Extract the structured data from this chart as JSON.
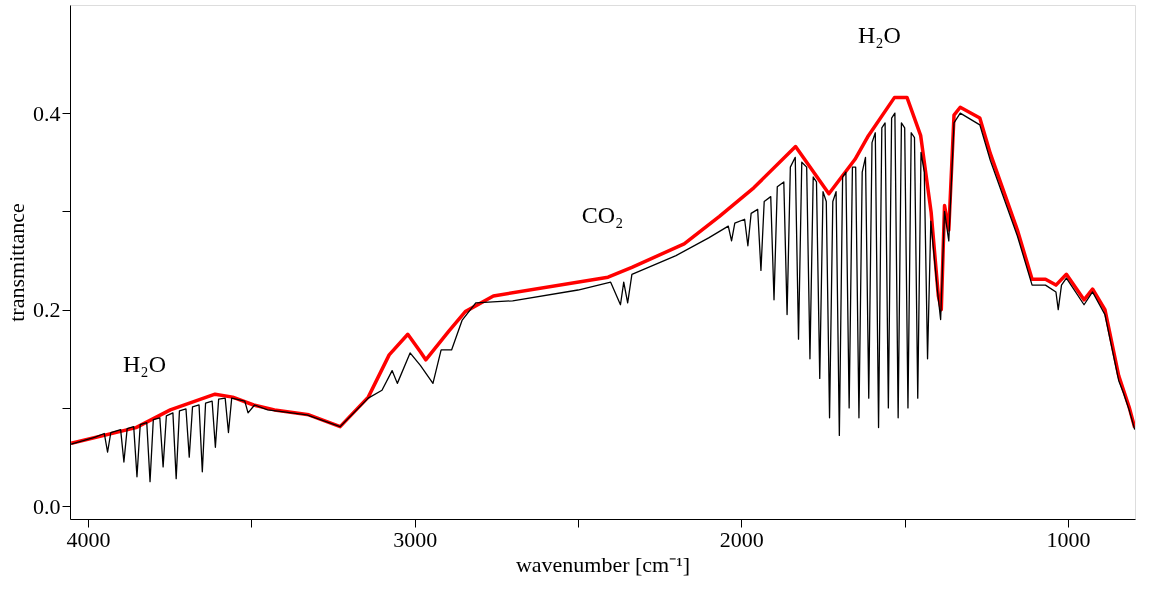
{
  "chart_data": {
    "type": "line",
    "xlabel": "wavenumber [cm⁻¹]",
    "ylabel": "transmittance",
    "xlim": [
      4055,
      795
    ],
    "xticks": [
      4000,
      {
        "value": 3500,
        "label": null
      },
      3000,
      {
        "value": 2500,
        "label": null
      },
      2000,
      {
        "value": 1500,
        "label": null
      },
      1000
    ],
    "ylim": [
      -0.013,
      0.51
    ],
    "yticks": [
      {
        "value": 0,
        "label": "0.0"
      },
      {
        "value": 0.1,
        "label": null
      },
      0.2,
      {
        "value": 0.3,
        "label": null
      },
      0.4
    ],
    "grid": false,
    "line_style": "solid",
    "annotations": [
      "H₂O",
      "CO₂",
      "H₂O"
    ],
    "series": [
      {
        "color": "#ff0000",
        "x": [
          4051,
          3853,
          3748,
          3611,
          3557,
          3493,
          3429,
          3324,
          3228,
          3142,
          3078,
          3021,
          2982,
          2966,
          2896,
          2845,
          2759,
          2408,
          2335,
          2175,
          2067,
          1962,
          1834,
          1732,
          1652,
          1611,
          1531,
          1493,
          1451,
          1419,
          1397,
          1388,
          1378,
          1365,
          1349,
          1330,
          1270,
          1238,
          1155,
          1110,
          1069,
          1037,
          1005,
          951,
          925,
          887,
          845,
          813,
          796
        ],
        "values": [
          0.064,
          0.08,
          0.098,
          0.114,
          0.111,
          0.103,
          0.098,
          0.093,
          0.081,
          0.111,
          0.154,
          0.175,
          0.157,
          0.149,
          0.178,
          0.198,
          0.214,
          0.233,
          0.243,
          0.267,
          0.295,
          0.324,
          0.366,
          0.318,
          0.353,
          0.377,
          0.416,
          0.416,
          0.377,
          0.299,
          0.214,
          0.2,
          0.306,
          0.281,
          0.398,
          0.406,
          0.395,
          0.359,
          0.281,
          0.231,
          0.231,
          0.225,
          0.236,
          0.21,
          0.221,
          0.2,
          0.133,
          0.101,
          0.08
        ]
      },
      {
        "color": "#000000",
        "x": [
          4054,
          3980,
          3950,
          3940,
          3930,
          3900,
          3890,
          3880,
          3860,
          3850,
          3840,
          3820,
          3810,
          3800,
          3780,
          3770,
          3760,
          3740,
          3730,
          3720,
          3700,
          3690,
          3680,
          3660,
          3650,
          3640,
          3620,
          3610,
          3600,
          3580,
          3570,
          3560,
          3520,
          3510,
          3490,
          3450,
          3400,
          3330,
          3228,
          3142,
          3100,
          3069,
          3053,
          3014,
          2982,
          2944,
          2919,
          2887,
          2855,
          2813,
          2700,
          2500,
          2400,
          2370,
          2360,
          2348,
          2335,
          2200,
          2100,
          2040,
          2030,
          2020,
          1990,
          1980,
          1970,
          1950,
          1940,
          1930,
          1910,
          1900,
          1890,
          1870,
          1860,
          1850,
          1835,
          1825,
          1815,
          1800,
          1790,
          1780,
          1770,
          1760,
          1750,
          1740,
          1730,
          1720,
          1710,
          1700,
          1690,
          1680,
          1670,
          1660,
          1650,
          1640,
          1630,
          1620,
          1610,
          1600,
          1590,
          1580,
          1570,
          1560,
          1550,
          1540,
          1530,
          1520,
          1510,
          1500,
          1490,
          1480,
          1470,
          1460,
          1450,
          1440,
          1430,
          1420,
          1400,
          1390,
          1378,
          1365,
          1349,
          1330,
          1270,
          1238,
          1155,
          1110,
          1069,
          1037,
          1030,
          1020,
          1005,
          951,
          925,
          887,
          845,
          830,
          813,
          796
        ],
        "values": [
          0.063,
          0.07,
          0.074,
          0.055,
          0.075,
          0.078,
          0.045,
          0.079,
          0.081,
          0.03,
          0.083,
          0.085,
          0.025,
          0.088,
          0.09,
          0.04,
          0.092,
          0.095,
          0.028,
          0.097,
          0.099,
          0.05,
          0.101,
          0.103,
          0.035,
          0.105,
          0.107,
          0.06,
          0.109,
          0.11,
          0.075,
          0.11,
          0.107,
          0.095,
          0.103,
          0.098,
          0.096,
          0.093,
          0.081,
          0.11,
          0.118,
          0.138,
          0.125,
          0.156,
          0.143,
          0.125,
          0.159,
          0.159,
          0.189,
          0.207,
          0.209,
          0.22,
          0.228,
          0.205,
          0.228,
          0.207,
          0.236,
          0.255,
          0.273,
          0.285,
          0.27,
          0.288,
          0.292,
          0.265,
          0.298,
          0.302,
          0.24,
          0.31,
          0.315,
          0.21,
          0.325,
          0.33,
          0.195,
          0.345,
          0.355,
          0.17,
          0.35,
          0.345,
          0.15,
          0.335,
          0.33,
          0.13,
          0.32,
          0.31,
          0.09,
          0.31,
          0.32,
          0.072,
          0.335,
          0.34,
          0.1,
          0.345,
          0.345,
          0.09,
          0.34,
          0.355,
          0.11,
          0.37,
          0.38,
          0.08,
          0.385,
          0.39,
          0.1,
          0.395,
          0.4,
          0.09,
          0.39,
          0.385,
          0.1,
          0.38,
          0.375,
          0.11,
          0.36,
          0.34,
          0.15,
          0.29,
          0.22,
          0.19,
          0.3,
          0.27,
          0.39,
          0.4,
          0.388,
          0.352,
          0.275,
          0.225,
          0.225,
          0.218,
          0.2,
          0.225,
          0.232,
          0.205,
          0.218,
          0.195,
          0.128,
          0.115,
          0.098,
          0.078
        ]
      }
    ]
  }
}
